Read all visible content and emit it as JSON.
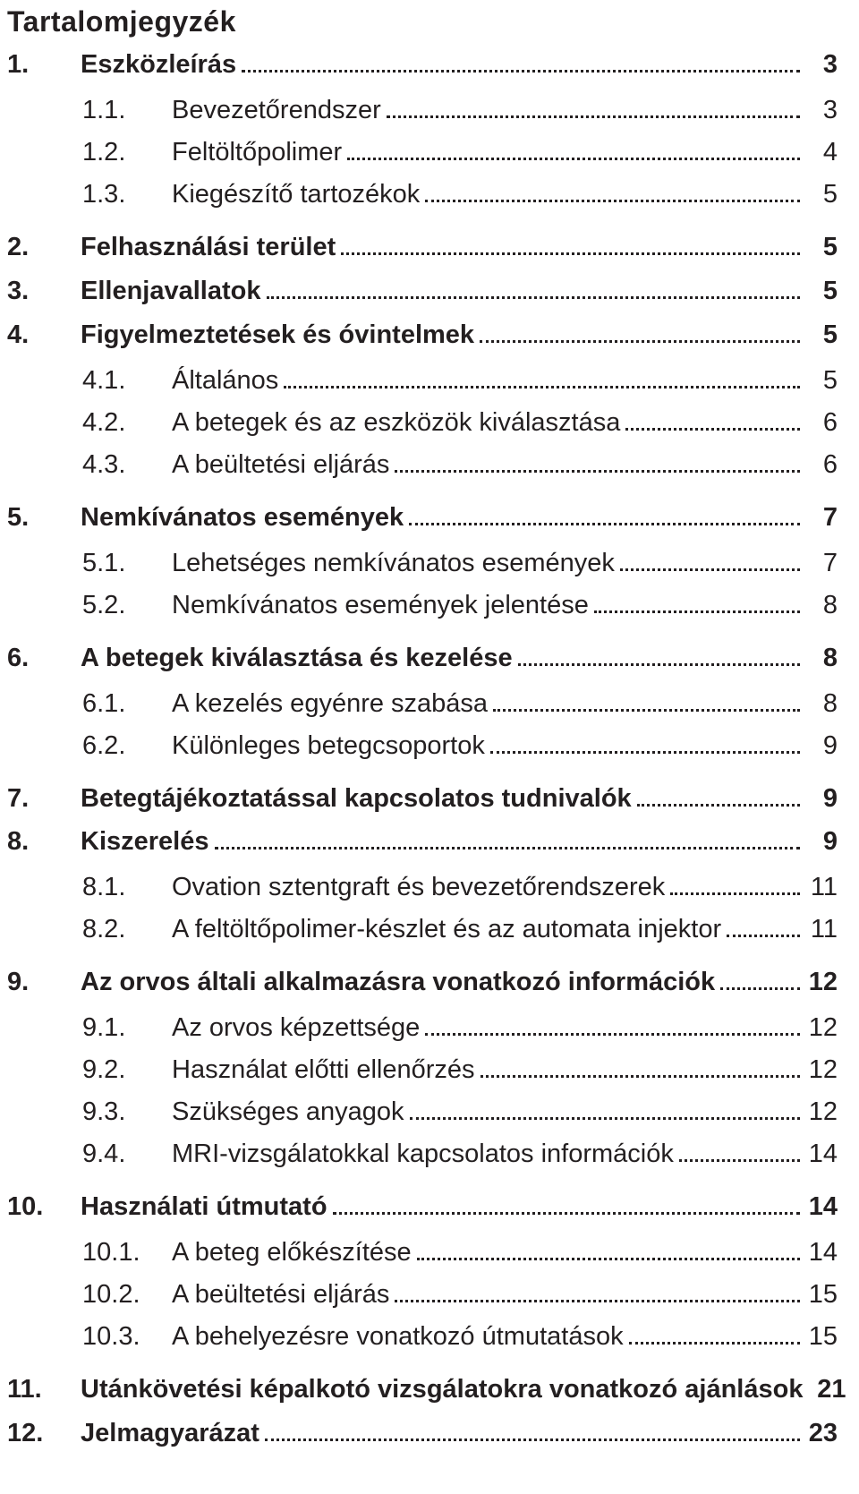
{
  "title": "Tartalomjegyzék",
  "entries": [
    {
      "num": "1.",
      "label": "Eszközleírás",
      "page": "3",
      "bold": true,
      "children": [
        {
          "num": "1.1.",
          "label": "Bevezetőrendszer",
          "page": "3"
        },
        {
          "num": "1.2.",
          "label": "Feltöltőpolimer",
          "page": "4"
        },
        {
          "num": "1.3.",
          "label": "Kiegészítő tartozékok",
          "page": "5"
        }
      ]
    },
    {
      "num": "2.",
      "label": "Felhasználási terület",
      "page": "5",
      "bold": true
    },
    {
      "num": "3.",
      "label": "Ellenjavallatok",
      "page": "5",
      "bold": true
    },
    {
      "num": "4.",
      "label": "Figyelmeztetések és óvintelmek",
      "page": "5",
      "bold": true,
      "children": [
        {
          "num": "4.1.",
          "label": "Általános",
          "page": "5"
        },
        {
          "num": "4.2.",
          "label": "A betegek és az eszközök kiválasztása",
          "page": "6"
        },
        {
          "num": "4.3.",
          "label": "A beültetési eljárás",
          "page": "6"
        }
      ]
    },
    {
      "num": "5.",
      "label": "Nemkívánatos események",
      "page": "7",
      "bold": true,
      "children": [
        {
          "num": "5.1.",
          "label": "Lehetséges nemkívánatos események",
          "page": "7"
        },
        {
          "num": "5.2.",
          "label": "Nemkívánatos események jelentése",
          "page": "8"
        }
      ]
    },
    {
      "num": "6.",
      "label": "A betegek kiválasztása és kezelése",
      "page": "8",
      "bold": true,
      "children": [
        {
          "num": "6.1.",
          "label": "A kezelés egyénre szabása",
          "page": "8"
        },
        {
          "num": "6.2.",
          "label": "Különleges betegcsoportok",
          "page": "9"
        }
      ]
    },
    {
      "num": "7.",
      "label": "Betegtájékoztatással kapcsolatos tudnivalók",
      "page": "9",
      "bold": true
    },
    {
      "num": "8.",
      "label": "Kiszerelés",
      "page": "9",
      "bold": true,
      "children": [
        {
          "num": "8.1.",
          "label": "Ovation sztentgraft és bevezetőrendszerek",
          "page": "11"
        },
        {
          "num": "8.2.",
          "label": "A feltöltőpolimer-készlet és az automata injektor",
          "page": "11"
        }
      ]
    },
    {
      "num": "9.",
      "label": "Az orvos általi alkalmazásra vonatkozó információk",
      "page": "12",
      "bold": true,
      "children": [
        {
          "num": "9.1.",
          "label": "Az orvos képzettsége",
          "page": "12"
        },
        {
          "num": "9.2.",
          "label": "Használat előtti ellenőrzés",
          "page": "12"
        },
        {
          "num": "9.3.",
          "label": "Szükséges anyagok",
          "page": "12"
        },
        {
          "num": "9.4.",
          "label": "MRI-vizsgálatokkal kapcsolatos információk",
          "page": "14"
        }
      ]
    },
    {
      "num": "10.",
      "label": "Használati útmutató",
      "page": "14",
      "bold": true,
      "children": [
        {
          "num": "10.1.",
          "label": "A beteg előkészítése",
          "page": "14"
        },
        {
          "num": "10.2.",
          "label": "A beültetési eljárás",
          "page": "15"
        },
        {
          "num": "10.3.",
          "label": "A behelyezésre vonatkozó útmutatások",
          "page": "15"
        }
      ]
    },
    {
      "num": "11.",
      "label": "Utánkövetési képalkotó vizsgálatokra vonatkozó ajánlások",
      "page": "21",
      "bold": true
    },
    {
      "num": "12.",
      "label": "Jelmagyarázat",
      "page": "23",
      "bold": true
    }
  ]
}
